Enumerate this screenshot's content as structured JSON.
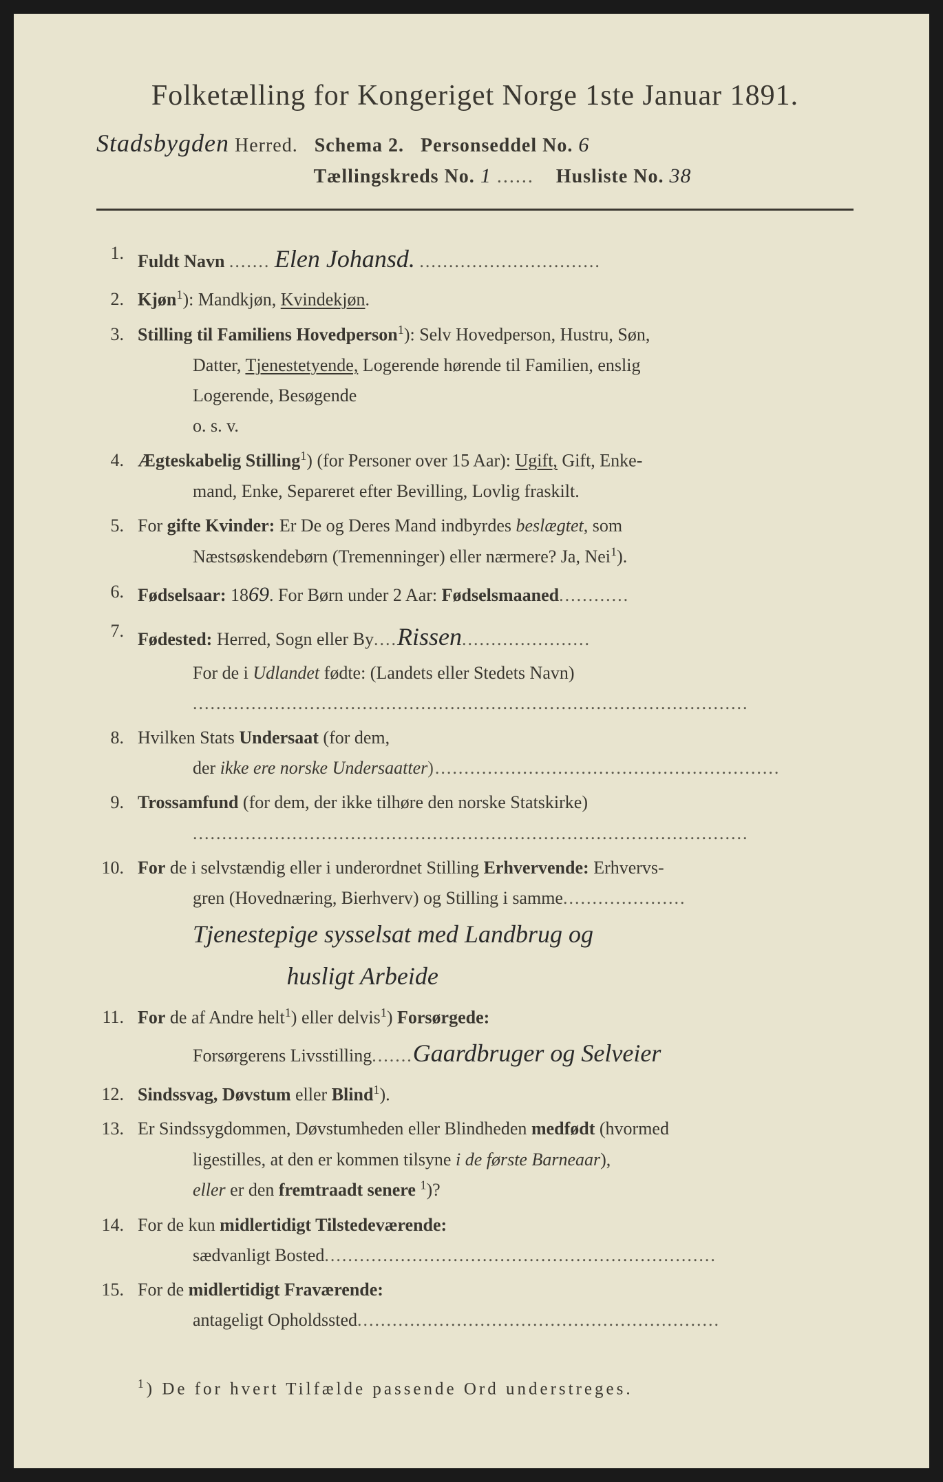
{
  "title": "Folketælling for Kongeriget Norge 1ste Januar 1891.",
  "header": {
    "herred_hw": "Stadsbygden",
    "herred_label": "Herred.",
    "schema": "Schema 2.",
    "person_label": "Personseddel No.",
    "person_no_hw": "6",
    "kreds_label": "Tællingskreds No.",
    "kreds_no_hw": "1",
    "husliste_label": "Husliste No.",
    "husliste_no_hw": "38"
  },
  "q1": {
    "num": "1.",
    "label": "Fuldt Navn",
    "hw": "Elen Johansd."
  },
  "q2": {
    "num": "2.",
    "label": "Kjøn",
    "sup": "1",
    "text": "): Mandkjøn, ",
    "underlined": "Kvindekjøn",
    "after": "."
  },
  "q3": {
    "num": "3.",
    "label": "Stilling til Familiens Hovedperson",
    "sup": "1",
    "line1": "):  Selv  Hovedperson,  Hustru,  Søn,",
    "line2a": "Datter,  ",
    "line2_ul": "Tjenestetyende,",
    "line2b": "  Logerende  hørende  til  Familien,  enslig",
    "line3": "Logerende,  Besøgende",
    "line4": "o. s. v."
  },
  "q4": {
    "num": "4.",
    "label": "Ægteskabelig Stilling",
    "sup": "1",
    "line1a": ") (for Personer over 15 Aar): ",
    "line1_ul": "Ugift,",
    "line1b": " Gift, Enke-",
    "line2": "mand, Enke, Separeret efter Bevilling, Lovlig fraskilt."
  },
  "q5": {
    "num": "5.",
    "line1a": "For ",
    "line1b": "gifte Kvinder:",
    "line1c": " Er De og Deres Mand indbyrdes ",
    "line1d": "beslægtet,",
    "line1e": " som",
    "line2": "Næstsøskendebørn (Tremenninger) eller nærmere?  Ja, Nei",
    "sup": "1",
    "line2b": ")."
  },
  "q6": {
    "num": "6.",
    "label": "Fødselsaar:",
    "year_pre": " 18",
    "year_hw": "69",
    "mid": ".   For Børn under 2 Aar: ",
    "label2": "Fødselsmaaned"
  },
  "q7": {
    "num": "7.",
    "label": "Fødested:",
    "line1a": " Herred, Sogn eller By",
    "hw": "Rissen",
    "line2a": "For de i ",
    "line2b": "Udlandet",
    "line2c": " fødte: (Landets eller Stedets Navn)"
  },
  "q8": {
    "num": "8.",
    "line1a": "Hvilken Stats ",
    "line1b": "Undersaat",
    "line1c": " (for dem,",
    "line2a": "der ",
    "line2b": "ikke ere norske Undersaatter"
  },
  "q9": {
    "num": "9.",
    "label": "Trossamfund",
    "text": "  (for  dem,  der  ikke  tilhøre  den  norske   Statskirke)"
  },
  "q10": {
    "num": "10.",
    "line1a": "For",
    "line1b": " de i selvstændig eller i underordnet Stilling ",
    "line1c": "Erhvervende:",
    "line1d": " Erhvervs-",
    "line2": "gren (Hovednæring, Bierhverv) og Stilling i samme",
    "hw1": "Tjenestepige   sysselsat  med   Landbrug  og",
    "hw2": "husligt  Arbeide"
  },
  "q11": {
    "num": "11.",
    "line1a": "For",
    "line1b": " de af Andre helt",
    "sup1": "1",
    "line1c": ") eller delvis",
    "sup2": "1",
    "line1d": ") ",
    "line1e": "Forsørgede:",
    "line2a": "Forsørgerens Livsstilling",
    "hw": "Gaardbruger  og  Selveier"
  },
  "q12": {
    "num": "12.",
    "label": "Sindssvag, Døvstum",
    "mid": " eller ",
    "label2": "Blind",
    "sup": "1",
    "after": ")."
  },
  "q13": {
    "num": "13.",
    "line1a": "Er Sindssygdommen, Døvstumheden eller Blindheden ",
    "line1b": "medfødt",
    "line1c": " (hvormed",
    "line2a": "ligestilles, at den er kommen tilsyne ",
    "line2b": "i de første Barneaar",
    "line2c": "),",
    "line3a": "eller",
    "line3b": " er den ",
    "line3c": "fremtraadt senere",
    "sup": "1",
    "line3d": ")?"
  },
  "q14": {
    "num": "14.",
    "line1a": "For de kun ",
    "line1b": "midlertidigt Tilstedeværende:",
    "line2": "sædvanligt Bosted"
  },
  "q15": {
    "num": "15.",
    "line1a": "For de ",
    "line1b": "midlertidigt Fraværende:",
    "line2": "antageligt Opholdssted"
  },
  "footnote": {
    "sup": "1",
    "text": ") De for hvert Tilfælde passende Ord understreges."
  },
  "colors": {
    "paper": "#e8e4cf",
    "ink": "#3a3730",
    "bg": "#1a1a1a"
  }
}
